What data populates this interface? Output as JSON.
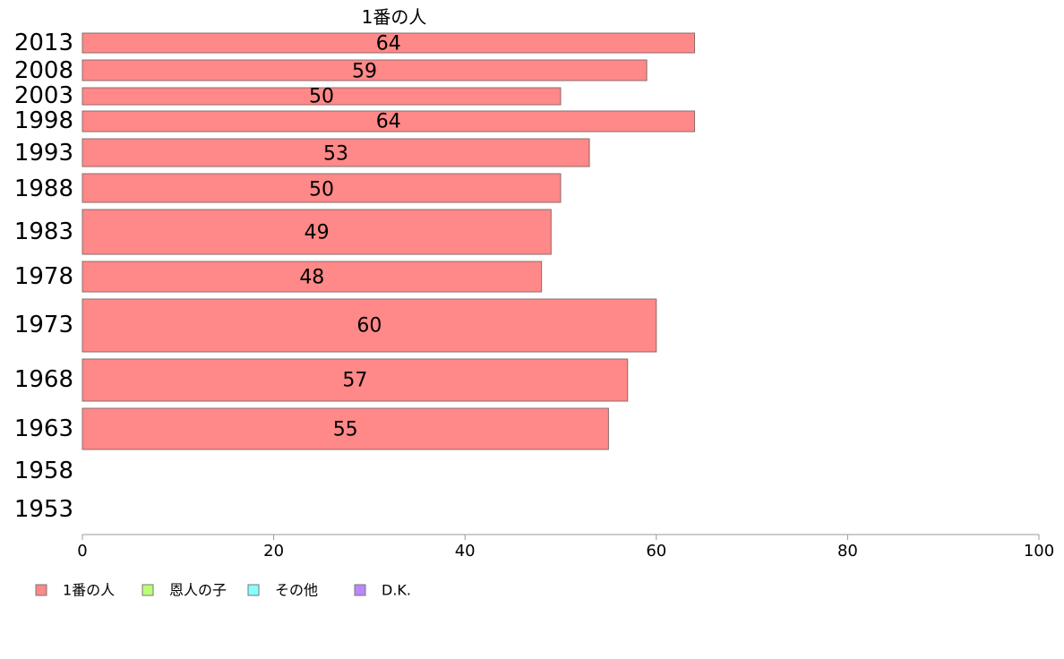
{
  "chart_data": {
    "type": "bar",
    "orientation": "horizontal",
    "title": "",
    "xlabel": "",
    "ylabel": "",
    "categories": [
      "2013",
      "2008",
      "2003",
      "1998",
      "1993",
      "1988",
      "1983",
      "1978",
      "1973",
      "1968",
      "1963",
      "1958",
      "1953"
    ],
    "series": [
      {
        "name": "1番の人",
        "color": "#ff8888",
        "values": [
          64,
          59,
          50,
          64,
          53,
          50,
          49,
          48,
          60,
          57,
          55,
          null,
          null
        ],
        "labels": [
          "64",
          "59",
          "50",
          "64",
          "53",
          "50",
          "49",
          "48",
          "60",
          "57",
          "55",
          "",
          ""
        ]
      }
    ],
    "xlim": [
      0,
      100
    ],
    "xticks": [
      "0",
      "20",
      "40",
      "60",
      "80",
      "100"
    ],
    "grid": false,
    "legend": {
      "placement": "bottom-left",
      "entries": [
        {
          "label": "1番の人",
          "color": "#ff8888"
        },
        {
          "label": "恩人の子",
          "color": "#bbff77"
        },
        {
          "label": "その他",
          "color": "#88ffff"
        },
        {
          "label": "D.K.",
          "color": "#bb88ff"
        }
      ]
    }
  }
}
